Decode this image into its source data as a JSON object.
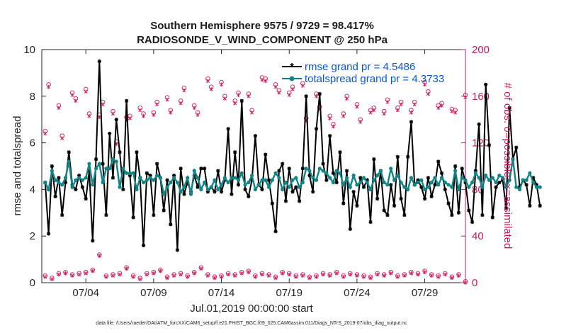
{
  "chart_data": {
    "type": "line",
    "title": "Southern Hemisphere 9575 / 9729 = 98.417%",
    "subtitle": "RADIOSONDE_V_WIND_COMPONENT @ 250 hPa",
    "xlabel": "Jul.01,2019 00:00:00 start",
    "ylabel": "rmse and totalspread",
    "ylabel_right": "# of obs: o=possible; ×=assimilated",
    "footnote": "data file: /Users/raeder/DAI/ATM_forcXX/CAM6_setup/f.e21.FHIST_BGC.f09_025.CAM6assim.011/Diags_NTrS_2019-07/obs_diag_output.nc",
    "xlim": [
      0.75,
      32
    ],
    "ylim": [
      0,
      10
    ],
    "ylim_right": [
      0,
      200
    ],
    "x_tick_values": [
      4,
      9,
      14,
      19,
      24,
      29
    ],
    "x_tick_labels": [
      "07/04",
      "07/09",
      "07/14",
      "07/19",
      "07/24",
      "07/29"
    ],
    "y_ticks": [
      "0",
      "2",
      "4",
      "6",
      "8",
      "10"
    ],
    "y_ticks_right": [
      "0",
      "40",
      "80",
      "120",
      "160",
      "200"
    ],
    "x_start_day": 1.0,
    "x_step_days": 0.25,
    "legend": [
      "rmse grand pr = 4.5486",
      "totalspread grand pr = 4.3733"
    ],
    "legend_position": "top-right",
    "colors": {
      "rmse": "#000000",
      "spread": "#0f8585",
      "obs": "#d4145a",
      "legend_text": "#0a57d8"
    },
    "series": [
      {
        "name": "rmse",
        "axis": "left",
        "values": [
          4.3,
          2.1,
          5.0,
          3.7,
          4.5,
          2.9,
          4.3,
          5.6,
          4.2,
          4.0,
          4.6,
          4.1,
          3.6,
          4.8,
          1.8,
          5.3,
          9.5,
          5.1,
          2.9,
          6.4,
          4.5,
          7.0,
          5.6,
          4.0,
          7.8,
          4.6,
          2.8,
          5.6,
          4.5,
          1.6,
          4.7,
          4.6,
          2.9,
          5.1,
          4.5,
          3.1,
          4.4,
          2.5,
          4.6,
          1.4,
          4.9,
          3.8,
          4.3,
          3.9,
          4.6,
          4.1,
          4.9,
          4.9,
          3.9,
          4.1,
          3.9,
          4.8,
          3.9,
          4.4,
          6.6,
          3.8,
          5.6,
          4.2,
          7.8,
          4.0,
          3.7,
          4.4,
          6.3,
          4.2,
          4.0,
          5.5,
          4.4,
          3.4,
          2.2,
          4.8,
          5.1,
          3.5,
          4.9,
          3.9,
          4.1,
          3.5,
          4.9,
          8.0,
          4.6,
          3.9,
          6.6,
          8.1,
          5.1,
          4.4,
          6.3,
          4.7,
          4.3,
          5.6,
          3.4,
          4.8,
          2.3,
          3.9,
          3.3,
          4.5,
          4.1,
          4.4,
          2.6,
          5.3,
          3.6,
          4.8,
          3.1,
          2.9,
          4.2,
          3.3,
          5.4,
          3.6,
          2.9,
          5.4,
          6.9,
          4.2,
          4.4,
          4.1,
          3.6,
          4.5,
          3.7,
          4.2,
          5.2,
          4.7,
          4.0,
          3.4,
          2.9,
          5.0,
          3.0,
          4.9,
          4.3,
          3.1,
          2.6,
          4.8,
          6.8,
          2.9,
          8.5,
          5.9,
          2.8,
          4.1,
          4.3,
          4.4,
          3.2,
          7.5,
          5.3,
          5.8,
          4.1,
          4.4,
          4.2,
          3.3,
          4.5,
          4.2,
          3.3
        ]
      },
      {
        "name": "totalspread",
        "axis": "left",
        "values": [
          4.3,
          4.0,
          4.8,
          4.4,
          4.3,
          4.2,
          4.5,
          5.2,
          4.1,
          4.4,
          4.5,
          4.4,
          4.5,
          5.1,
          4.2,
          4.9,
          5.1,
          4.3,
          4.9,
          4.9,
          5.3,
          5.2,
          4.1,
          4.9,
          4.7,
          4.7,
          4.7,
          4.0,
          4.5,
          4.3,
          4.4,
          4.5,
          4.4,
          4.6,
          4.5,
          3.8,
          4.1,
          4.3,
          4.5,
          4.3,
          3.9,
          4.1,
          4.5,
          3.8,
          4.8,
          4.5,
          4.0,
          4.3,
          4.0,
          4.1,
          4.4,
          4.0,
          4.2,
          4.5,
          4.3,
          4.5,
          4.5,
          4.4,
          4.7,
          4.2,
          4.3,
          4.6,
          4.0,
          4.2,
          4.4,
          4.4,
          4.1,
          4.4,
          4.7,
          4.5,
          4.0,
          4.3,
          4.1,
          4.4,
          4.5,
          4.1,
          4.3,
          4.9,
          4.8,
          4.5,
          4.4,
          4.9,
          4.8,
          4.7,
          4.5,
          4.3,
          4.8,
          4.7,
          4.2,
          4.5,
          4.1,
          4.6,
          4.2,
          4.3,
          4.5,
          4.3,
          4.0,
          4.4,
          4.6,
          4.8,
          4.3,
          4.2,
          4.9,
          4.4,
          4.6,
          4.3,
          4.1,
          4.0,
          4.5,
          4.2,
          4.3,
          4.4,
          4.0,
          4.1,
          4.3,
          4.5,
          4.2,
          4.5,
          4.3,
          4.2,
          4.1,
          4.8,
          4.0,
          4.5,
          4.4,
          4.1,
          4.3,
          4.7,
          4.5,
          4.1,
          4.6,
          4.4,
          4.5,
          4.3,
          4.6,
          4.5,
          4.1,
          4.4,
          5.3,
          4.1,
          4.0,
          4.4,
          4.4,
          4.7,
          4.3,
          4.1,
          4.1
        ]
      }
    ],
    "obs_days": [
      1.0,
      1.25,
      2.0,
      2.25,
      3.0,
      3.25,
      4.0,
      4.25,
      5.0,
      5.25,
      6.0,
      6.25,
      7.0,
      7.25,
      8.0,
      8.25,
      9.0,
      9.25,
      10.0,
      10.25,
      11.0,
      11.25,
      12.0,
      12.25,
      13.0,
      13.25,
      14.0,
      14.25,
      15.0,
      15.25,
      16.0,
      16.25,
      17.0,
      17.25,
      18.0,
      18.25,
      19.0,
      19.25,
      20.0,
      20.25,
      21.0,
      21.25,
      22.0,
      22.25,
      23.0,
      23.25,
      24.0,
      24.25,
      25.0,
      25.25,
      26.0,
      26.25,
      27.0,
      27.25,
      28.0,
      28.25,
      29.0,
      29.25,
      30.0,
      30.25,
      31.0,
      31.25,
      32.0
    ],
    "obs_possible": [
      130,
      170,
      152,
      126,
      163,
      158,
      166,
      145,
      144,
      155,
      147,
      121,
      142,
      143,
      150,
      145,
      146,
      155,
      159,
      148,
      156,
      167,
      152,
      146,
      175,
      168,
      172,
      160,
      156,
      163,
      162,
      148,
      176,
      175,
      170,
      165,
      163,
      168,
      171,
      141,
      162,
      151,
      143,
      136,
      145,
      160,
      153,
      140,
      148,
      150,
      147,
      157,
      150,
      155,
      148,
      155,
      172,
      164,
      152,
      154,
      149,
      148,
      161
    ],
    "obs_assimilated": [
      128,
      168,
      150,
      124,
      161,
      156,
      164,
      143,
      142,
      153,
      145,
      119,
      140,
      141,
      148,
      143,
      144,
      153,
      157,
      146,
      154,
      165,
      150,
      144,
      173,
      166,
      170,
      158,
      154,
      161,
      160,
      146,
      174,
      173,
      168,
      163,
      161,
      166,
      169,
      139,
      160,
      149,
      141,
      134,
      143,
      158,
      151,
      138,
      146,
      148,
      145,
      155,
      148,
      153,
      146,
      153,
      170,
      162,
      150,
      152,
      147,
      146,
      159
    ],
    "obs_possible_low_days": [
      1.0,
      1.5,
      2.0,
      2.5,
      3.0,
      3.5,
      4.0,
      4.5,
      5.0,
      5.5,
      6.0,
      6.5,
      7.0,
      7.5,
      8.0,
      8.5,
      9.0,
      9.5,
      10.0,
      10.5,
      11.0,
      11.5,
      12.0,
      12.5,
      13.0,
      13.5,
      14.0,
      14.5,
      15.0,
      15.5,
      16.0,
      16.5,
      17.0,
      17.5,
      18.0,
      18.5,
      19.0,
      19.5,
      20.0,
      20.5,
      21.0,
      21.5,
      22.0,
      22.5,
      23.0,
      23.5,
      24.0,
      24.5,
      25.0,
      25.5,
      26.0,
      26.5,
      27.0,
      27.5,
      28.0,
      28.5,
      29.0,
      29.5,
      30.0,
      30.5,
      31.0,
      31.5,
      32.0
    ],
    "obs_possible_low": [
      6,
      4,
      8,
      9,
      7,
      8,
      9,
      11,
      24,
      6,
      7,
      8,
      13,
      6,
      4,
      8,
      9,
      11,
      5,
      7,
      8,
      6,
      9,
      13,
      7,
      5,
      6,
      8,
      7,
      9,
      10,
      6,
      8,
      7,
      5,
      9,
      8,
      6,
      7,
      5,
      6,
      8,
      7,
      9,
      6,
      8,
      7,
      6,
      5,
      8,
      7,
      9,
      6,
      7,
      9,
      8,
      10,
      7,
      6,
      8,
      5,
      7,
      1
    ],
    "obs_assimilated_low": [
      5,
      3,
      7,
      8,
      6,
      7,
      8,
      10,
      23,
      5,
      6,
      7,
      12,
      5,
      3,
      7,
      8,
      10,
      4,
      6,
      7,
      5,
      8,
      12,
      6,
      4,
      5,
      7,
      6,
      8,
      9,
      5,
      7,
      6,
      4,
      8,
      7,
      5,
      6,
      4,
      5,
      7,
      6,
      8,
      5,
      7,
      6,
      5,
      4,
      7,
      6,
      8,
      5,
      6,
      8,
      7,
      9,
      6,
      5,
      7,
      4,
      6,
      0
    ]
  }
}
